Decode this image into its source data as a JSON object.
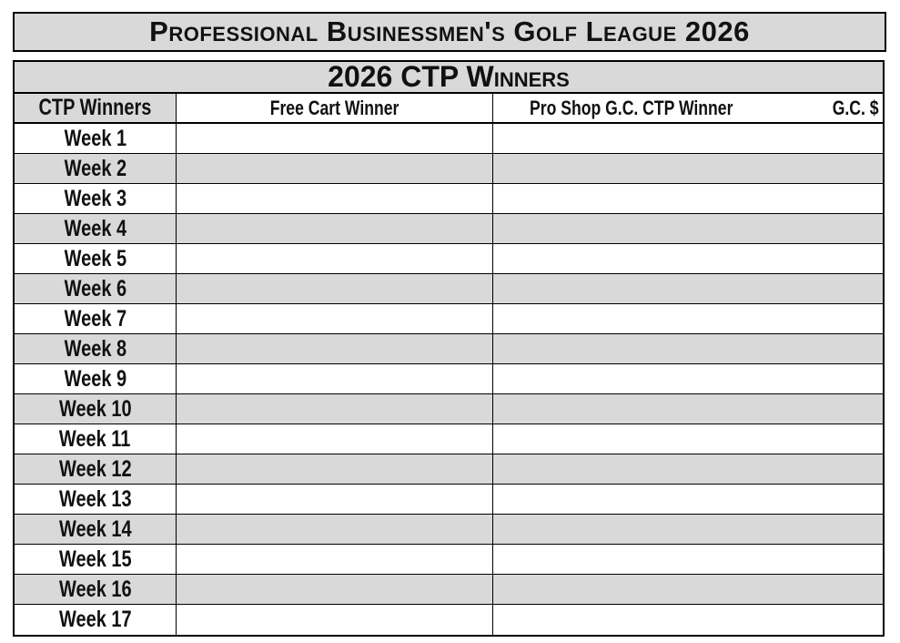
{
  "title": "Professional Businessmen's Golf League 2026",
  "table": {
    "banner": "2026 CTP Winners",
    "headers": {
      "week": "CTP Winners",
      "free_cart": "Free Cart Winner",
      "pro_shop": "Pro Shop G.C. CTP Winner",
      "gc_amount": "G.C. $"
    },
    "rows": [
      {
        "week": "Week 1",
        "free_cart": "",
        "pro_shop": "",
        "gc_amount": ""
      },
      {
        "week": "Week 2",
        "free_cart": "",
        "pro_shop": "",
        "gc_amount": ""
      },
      {
        "week": "Week 3",
        "free_cart": "",
        "pro_shop": "",
        "gc_amount": ""
      },
      {
        "week": "Week 4",
        "free_cart": "",
        "pro_shop": "",
        "gc_amount": ""
      },
      {
        "week": "Week 5",
        "free_cart": "",
        "pro_shop": "",
        "gc_amount": ""
      },
      {
        "week": "Week 6",
        "free_cart": "",
        "pro_shop": "",
        "gc_amount": ""
      },
      {
        "week": "Week 7",
        "free_cart": "",
        "pro_shop": "",
        "gc_amount": ""
      },
      {
        "week": "Week 8",
        "free_cart": "",
        "pro_shop": "",
        "gc_amount": ""
      },
      {
        "week": "Week 9",
        "free_cart": "",
        "pro_shop": "",
        "gc_amount": ""
      },
      {
        "week": "Week 10",
        "free_cart": "",
        "pro_shop": "",
        "gc_amount": ""
      },
      {
        "week": "Week 11",
        "free_cart": "",
        "pro_shop": "",
        "gc_amount": ""
      },
      {
        "week": "Week 12",
        "free_cart": "",
        "pro_shop": "",
        "gc_amount": ""
      },
      {
        "week": "Week 13",
        "free_cart": "",
        "pro_shop": "",
        "gc_amount": ""
      },
      {
        "week": "Week 14",
        "free_cart": "",
        "pro_shop": "",
        "gc_amount": ""
      },
      {
        "week": "Week 15",
        "free_cart": "",
        "pro_shop": "",
        "gc_amount": ""
      },
      {
        "week": "Week 16",
        "free_cart": "",
        "pro_shop": "",
        "gc_amount": ""
      },
      {
        "week": "Week 17",
        "free_cart": "",
        "pro_shop": "",
        "gc_amount": ""
      }
    ]
  },
  "colors": {
    "header_fill": "#d9d9d9",
    "alt_row_fill": "#d9d9d9",
    "border": "#000000"
  }
}
